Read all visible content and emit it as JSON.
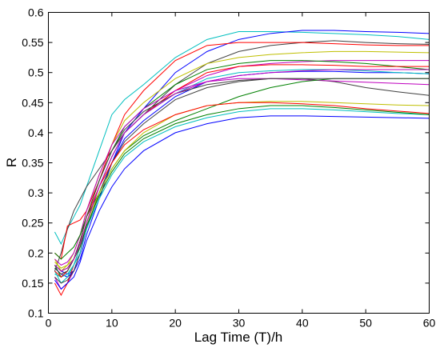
{
  "chart_data": {
    "type": "line",
    "xlabel": "Lag Time (T)/h",
    "ylabel": "R",
    "xlim": [
      0,
      60
    ],
    "ylim": [
      0.1,
      0.6
    ],
    "xticks": [
      0,
      10,
      20,
      30,
      40,
      50,
      60
    ],
    "xtick_labels": [
      "0",
      "10",
      "20",
      "30",
      "40",
      "50",
      "60"
    ],
    "yticks": [
      0.1,
      0.15,
      0.2,
      0.25,
      0.3,
      0.35,
      0.4,
      0.45,
      0.5,
      0.55,
      0.6
    ],
    "ytick_labels": [
      "0.1",
      "0.15",
      "0.2",
      "0.25",
      "0.3",
      "0.35",
      "0.4",
      "0.45",
      "0.5",
      "0.55",
      "0.6"
    ],
    "grid": false,
    "x": [
      1,
      2,
      3,
      4,
      5,
      6,
      8,
      10,
      12,
      15,
      20,
      25,
      30,
      35,
      40,
      45,
      50,
      55,
      60
    ],
    "series": [
      {
        "color": "#00bfbf",
        "values": [
          0.235,
          0.215,
          0.24,
          0.26,
          0.28,
          0.31,
          0.37,
          0.43,
          0.455,
          0.48,
          0.525,
          0.555,
          0.568,
          0.568,
          0.567,
          0.565,
          0.563,
          0.56,
          0.555
        ]
      },
      {
        "color": "#0000ff",
        "values": [
          0.18,
          0.17,
          0.165,
          0.17,
          0.19,
          0.23,
          0.29,
          0.35,
          0.4,
          0.44,
          0.5,
          0.535,
          0.555,
          0.565,
          0.57,
          0.57,
          0.568,
          0.567,
          0.565
        ]
      },
      {
        "color": "#404040",
        "values": [
          0.17,
          0.2,
          0.24,
          0.27,
          0.29,
          0.31,
          0.34,
          0.37,
          0.4,
          0.43,
          0.48,
          0.515,
          0.535,
          0.545,
          0.55,
          0.553,
          0.55,
          0.548,
          0.547
        ]
      },
      {
        "color": "#ff0000",
        "values": [
          0.2,
          0.19,
          0.245,
          0.25,
          0.255,
          0.27,
          0.32,
          0.38,
          0.43,
          0.47,
          0.52,
          0.545,
          0.55,
          0.55,
          0.55,
          0.548,
          0.546,
          0.545,
          0.545
        ]
      },
      {
        "color": "#bfbf00",
        "values": [
          0.19,
          0.17,
          0.18,
          0.2,
          0.23,
          0.27,
          0.33,
          0.38,
          0.42,
          0.45,
          0.49,
          0.515,
          0.525,
          0.53,
          0.533,
          0.535,
          0.535,
          0.534,
          0.533
        ]
      },
      {
        "color": "#bf00bf",
        "values": [
          0.16,
          0.14,
          0.15,
          0.17,
          0.2,
          0.25,
          0.31,
          0.36,
          0.4,
          0.43,
          0.47,
          0.495,
          0.51,
          0.515,
          0.518,
          0.52,
          0.52,
          0.52,
          0.52
        ]
      },
      {
        "color": "#008000",
        "values": [
          0.18,
          0.16,
          0.17,
          0.19,
          0.22,
          0.26,
          0.32,
          0.37,
          0.41,
          0.44,
          0.48,
          0.505,
          0.515,
          0.52,
          0.52,
          0.518,
          0.515,
          0.51,
          0.505
        ]
      },
      {
        "color": "#ff0000",
        "values": [
          0.15,
          0.13,
          0.15,
          0.18,
          0.21,
          0.25,
          0.31,
          0.36,
          0.4,
          0.43,
          0.47,
          0.5,
          0.51,
          0.513,
          0.513,
          0.512,
          0.51,
          0.51,
          0.51
        ]
      },
      {
        "color": "#0000ff",
        "values": [
          0.175,
          0.165,
          0.16,
          0.17,
          0.2,
          0.24,
          0.3,
          0.35,
          0.39,
          0.42,
          0.46,
          0.485,
          0.495,
          0.5,
          0.502,
          0.502,
          0.5,
          0.5,
          0.498
        ]
      },
      {
        "color": "#00bfbf",
        "values": [
          0.17,
          0.15,
          0.16,
          0.18,
          0.21,
          0.25,
          0.31,
          0.36,
          0.4,
          0.43,
          0.465,
          0.49,
          0.5,
          0.503,
          0.505,
          0.505,
          0.503,
          0.5,
          0.498
        ]
      },
      {
        "color": "#404040",
        "values": [
          0.16,
          0.15,
          0.155,
          0.17,
          0.2,
          0.24,
          0.3,
          0.35,
          0.385,
          0.415,
          0.455,
          0.475,
          0.485,
          0.49,
          0.49,
          0.485,
          0.475,
          0.468,
          0.462
        ]
      },
      {
        "color": "#bf00bf",
        "values": [
          0.19,
          0.18,
          0.185,
          0.2,
          0.23,
          0.27,
          0.33,
          0.38,
          0.41,
          0.44,
          0.47,
          0.485,
          0.49,
          0.49,
          0.488,
          0.486,
          0.484,
          0.482,
          0.48
        ]
      },
      {
        "color": "#008000",
        "values": [
          0.2,
          0.19,
          0.2,
          0.21,
          0.23,
          0.26,
          0.3,
          0.34,
          0.37,
          0.395,
          0.42,
          0.44,
          0.46,
          0.475,
          0.485,
          0.49,
          0.49,
          0.49,
          0.49
        ]
      },
      {
        "color": "#bfbf00",
        "values": [
          0.185,
          0.175,
          0.18,
          0.19,
          0.21,
          0.25,
          0.3,
          0.34,
          0.37,
          0.4,
          0.43,
          0.445,
          0.45,
          0.452,
          0.452,
          0.45,
          0.448,
          0.446,
          0.445
        ]
      },
      {
        "color": "#00bfbf",
        "values": [
          0.165,
          0.16,
          0.165,
          0.18,
          0.2,
          0.24,
          0.29,
          0.33,
          0.36,
          0.385,
          0.41,
          0.425,
          0.435,
          0.44,
          0.44,
          0.438,
          0.435,
          0.432,
          0.43
        ]
      },
      {
        "color": "#ff0000",
        "values": [
          0.17,
          0.16,
          0.17,
          0.19,
          0.22,
          0.26,
          0.31,
          0.35,
          0.38,
          0.405,
          0.43,
          0.445,
          0.45,
          0.45,
          0.448,
          0.445,
          0.44,
          0.436,
          0.432
        ]
      },
      {
        "color": "#0000ff",
        "values": [
          0.155,
          0.14,
          0.15,
          0.16,
          0.185,
          0.22,
          0.27,
          0.31,
          0.34,
          0.37,
          0.4,
          0.415,
          0.425,
          0.428,
          0.428,
          0.427,
          0.426,
          0.425,
          0.424
        ]
      },
      {
        "color": "#008000",
        "values": [
          0.18,
          0.17,
          0.175,
          0.19,
          0.21,
          0.245,
          0.295,
          0.335,
          0.365,
          0.39,
          0.415,
          0.43,
          0.44,
          0.445,
          0.445,
          0.442,
          0.438,
          0.434,
          0.43
        ]
      },
      {
        "color": "#404040",
        "values": [
          0.175,
          0.165,
          0.17,
          0.19,
          0.22,
          0.26,
          0.32,
          0.37,
          0.405,
          0.435,
          0.465,
          0.48,
          0.487,
          0.49,
          0.49,
          0.49,
          0.49,
          0.49,
          0.49
        ]
      },
      {
        "color": "#bf00bf",
        "values": [
          0.18,
          0.17,
          0.175,
          0.19,
          0.215,
          0.25,
          0.31,
          0.36,
          0.4,
          0.43,
          0.465,
          0.485,
          0.495,
          0.5,
          0.503,
          0.505,
          0.505,
          0.505,
          0.505
        ]
      }
    ]
  }
}
